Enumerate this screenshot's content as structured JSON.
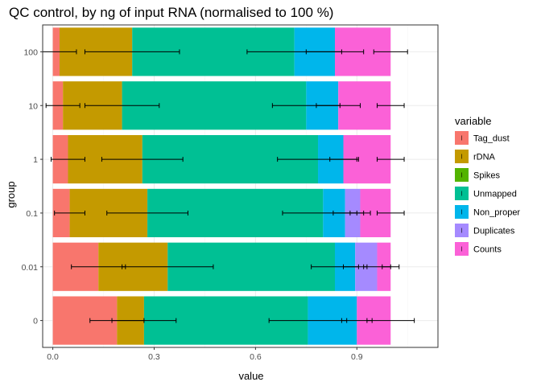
{
  "chart_data": {
    "type": "bar",
    "orientation": "horizontal",
    "stacked": true,
    "title": "QC control, by ng of input RNA (normalised to 100 %)",
    "xlabel": "value",
    "ylabel": "group",
    "xlim": [
      -0.03,
      1.14
    ],
    "xticks": [
      "0.0",
      "0.3",
      "0.6",
      "0.9"
    ],
    "xtick_values": [
      0,
      0.3,
      0.6,
      0.9
    ],
    "categories": [
      "100",
      "10",
      "1",
      "0.1",
      "0.01",
      "0"
    ],
    "grid": true,
    "legend_title": "variable",
    "legend_position": "right",
    "series": [
      {
        "name": "Tag_dust",
        "color": "#F8766D",
        "values": [
          0.02,
          0.03,
          0.045,
          0.05,
          0.135,
          0.19
        ],
        "errors": [
          0.05,
          0.05,
          0.05,
          0.045,
          0.08,
          0.08
        ]
      },
      {
        "name": "rDNA",
        "color": "#C49A00",
        "values": [
          0.215,
          0.175,
          0.22,
          0.23,
          0.205,
          0.08
        ],
        "errors": [
          0.14,
          0.11,
          0.12,
          0.12,
          0.135,
          0.095
        ]
      },
      {
        "name": "Spikes",
        "color": "#53B400",
        "values": [
          0,
          0,
          0,
          0,
          0,
          0
        ],
        "errors": [
          0,
          0,
          0,
          0,
          0,
          0
        ]
      },
      {
        "name": "Unmapped",
        "color": "#00C094",
        "values": [
          0.48,
          0.545,
          0.52,
          0.52,
          0.495,
          0.485
        ],
        "errors": [
          0.14,
          0.1,
          0.12,
          0.12,
          0.07,
          0.115
        ]
      },
      {
        "name": "Non_proper",
        "color": "#00B6EB",
        "values": [
          0.12,
          0.095,
          0.075,
          0.065,
          0.06,
          0.145
        ],
        "errors": [
          0.085,
          0.065,
          0.04,
          0.035,
          0.035,
          0.045
        ]
      },
      {
        "name": "Duplicates",
        "color": "#A58AFF",
        "values": [
          0,
          0,
          0,
          0.045,
          0.065,
          0
        ],
        "errors": [
          0,
          0,
          0,
          0.03,
          0.04,
          0
        ]
      },
      {
        "name": "Counts",
        "color": "#FB61D7",
        "values": [
          0.165,
          0.155,
          0.14,
          0.09,
          0.04,
          0.1
        ],
        "errors": [
          0.05,
          0.04,
          0.04,
          0.04,
          0.025,
          0.07
        ]
      }
    ]
  }
}
